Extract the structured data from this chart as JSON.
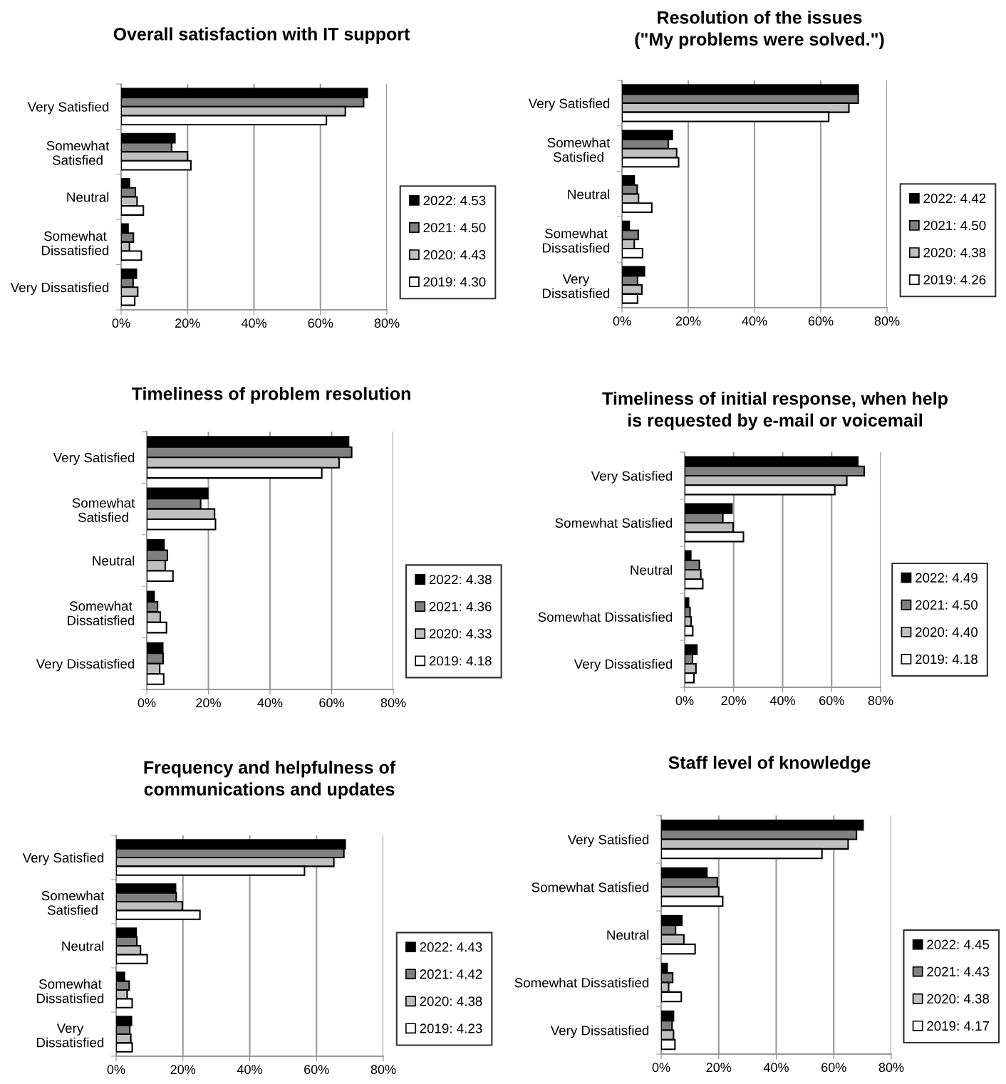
{
  "chart_data": [
    {
      "type": "bar",
      "orientation": "horizontal",
      "title": "Overall satisfaction with IT support",
      "categories": [
        "Very Satisfied",
        "Somewhat\nSatisfied",
        "Neutral",
        "Somewhat\nDissatisfied",
        "Very Dissatisfied"
      ],
      "xlim": [
        0,
        80
      ],
      "xticks": [
        {
          "value": 0,
          "label": "0%"
        },
        {
          "value": 20,
          "label": "20%"
        },
        {
          "value": 40,
          "label": "40%"
        },
        {
          "value": 60,
          "label": "60%"
        },
        {
          "value": 80,
          "label": "80%"
        }
      ],
      "grid": "x",
      "legend": "right",
      "series": [
        {
          "name": "2022: 4.53",
          "color": "#000000",
          "values": [
            74.1,
            16.2,
            2.5,
            2.1,
            4.6
          ]
        },
        {
          "name": "2021: 4.50",
          "color": "#808080",
          "values": [
            73,
            15.2,
            4.3,
            3.7,
            3.6
          ]
        },
        {
          "name": "2020: 4.43",
          "color": "#c0c0c0",
          "values": [
            67.5,
            20,
            4.8,
            2.5,
            5
          ]
        },
        {
          "name": "2019: 4.30",
          "color": "#ffffff",
          "values": [
            61.8,
            21,
            6.7,
            6.1,
            4.1
          ]
        }
      ]
    },
    {
      "type": "bar",
      "orientation": "horizontal",
      "title": "Resolution of the issues\n(\"My problems were solved.\")",
      "categories": [
        "Very Satisfied",
        "Somewhat\nSatisfied",
        "Neutral",
        "Somewhat\nDissatisfied",
        "Very\nDissatisfied"
      ],
      "xlim": [
        0,
        80
      ],
      "xticks": [
        {
          "value": 0,
          "label": "0%"
        },
        {
          "value": 20,
          "label": "20%"
        },
        {
          "value": 40,
          "label": "40%"
        },
        {
          "value": 60,
          "label": "60%"
        },
        {
          "value": 80,
          "label": "80%"
        }
      ],
      "grid": "x",
      "legend": "right",
      "series": [
        {
          "name": "2022: 4.42",
          "color": "#000000",
          "values": [
            71.3,
            15.2,
            3.7,
            2.2,
            6.8
          ]
        },
        {
          "name": "2021: 4.50",
          "color": "#808080",
          "values": [
            71.3,
            14,
            4.6,
            4.9,
            4.7
          ]
        },
        {
          "name": "2020: 4.38",
          "color": "#c0c0c0",
          "values": [
            68.5,
            16.5,
            5,
            3.7,
            6
          ]
        },
        {
          "name": "2019: 4.26",
          "color": "#ffffff",
          "values": [
            62.4,
            17.1,
            9,
            6.2,
            4.7
          ]
        }
      ]
    },
    {
      "type": "bar",
      "orientation": "horizontal",
      "title": "Timeliness of problem resolution",
      "categories": [
        "Very Satisfied",
        "Somewhat\nSatisfied",
        "Neutral",
        "Somewhat\nDissatisfied",
        "Very Dissatisfied"
      ],
      "xlim": [
        0,
        80
      ],
      "xticks": [
        {
          "value": 0,
          "label": "0%"
        },
        {
          "value": 20,
          "label": "20%"
        },
        {
          "value": 40,
          "label": "40%"
        },
        {
          "value": 60,
          "label": "60%"
        },
        {
          "value": 80,
          "label": "80%"
        }
      ],
      "grid": "x",
      "legend": "right",
      "series": [
        {
          "name": "2022: 4.38",
          "color": "#000000",
          "values": [
            65.5,
            19.8,
            5.6,
            2.4,
            5.2
          ]
        },
        {
          "name": "2021: 4.36",
          "color": "#808080",
          "values": [
            66.5,
            17.5,
            6.7,
            3.5,
            5.3
          ]
        },
        {
          "name": "2020: 4.33",
          "color": "#c0c0c0",
          "values": [
            62.4,
            22,
            6,
            4.4,
            4.2
          ]
        },
        {
          "name": "2019: 4.18",
          "color": "#ffffff",
          "values": [
            56.8,
            22.3,
            8.5,
            6.4,
            5.5
          ]
        }
      ]
    },
    {
      "type": "bar",
      "orientation": "horizontal",
      "title": "Timeliness of initial response, when help\nis requested by e-mail or voicemail",
      "categories": [
        "Very Satisfied",
        "Somewhat Satisfied",
        "Neutral",
        "Somewhat Dissatisfied",
        "Very Dissatisfied"
      ],
      "xlim": [
        0,
        80
      ],
      "xticks": [
        {
          "value": 0,
          "label": "0%"
        },
        {
          "value": 20,
          "label": "20%"
        },
        {
          "value": 40,
          "label": "40%"
        },
        {
          "value": 60,
          "label": "60%"
        },
        {
          "value": 80,
          "label": "80%"
        }
      ],
      "grid": "x",
      "legend": "right",
      "series": [
        {
          "name": "2022: 4.49",
          "color": "#000000",
          "values": [
            70.7,
            19.3,
            2.5,
            1.6,
            5
          ]
        },
        {
          "name": "2021: 4.50",
          "color": "#808080",
          "values": [
            73.3,
            15.6,
            6,
            2.2,
            3.2
          ]
        },
        {
          "name": "2020: 4.40",
          "color": "#c0c0c0",
          "values": [
            66.2,
            19.8,
            6.6,
            2.6,
            4.6
          ]
        },
        {
          "name": "2019: 4.18",
          "color": "#ffffff",
          "values": [
            61.3,
            24,
            7.4,
            3.3,
            3.8
          ]
        }
      ]
    },
    {
      "type": "bar",
      "orientation": "horizontal",
      "title": "Frequency and helpfulness of\ncommunications and updates",
      "categories": [
        "Very Satisfied",
        "Somewhat\nSatisfied",
        "Neutral",
        "Somewhat\nDissatisfied",
        "Very\nDissatisfied"
      ],
      "xlim": [
        0,
        80
      ],
      "xticks": [
        {
          "value": 0,
          "label": "0%"
        },
        {
          "value": 20,
          "label": "20%"
        },
        {
          "value": 40,
          "label": "40%"
        },
        {
          "value": 60,
          "label": "60%"
        },
        {
          "value": 80,
          "label": "80%"
        }
      ],
      "grid": "x",
      "legend": "right",
      "series": [
        {
          "name": "2022: 4.43",
          "color": "#000000",
          "values": [
            68.6,
            17.8,
            6,
            2.5,
            4.6
          ]
        },
        {
          "name": "2021: 4.42",
          "color": "#808080",
          "values": [
            68.2,
            18,
            6.2,
            3.9,
            4.1
          ]
        },
        {
          "name": "2020: 4.38",
          "color": "#c0c0c0",
          "values": [
            65.2,
            19.8,
            7.3,
            3.3,
            4.4
          ]
        },
        {
          "name": "2019: 4.23",
          "color": "#ffffff",
          "values": [
            56.4,
            25.1,
            9.3,
            4.8,
            4.8
          ]
        }
      ]
    },
    {
      "type": "bar",
      "orientation": "horizontal",
      "title": "Staff level of knowledge",
      "categories": [
        "Very Satisfied",
        "Somewhat Satisfied",
        "Neutral",
        "Somewhat Dissatisfied",
        "Very Dissatisfied"
      ],
      "xlim": [
        0,
        80
      ],
      "xticks": [
        {
          "value": 0,
          "label": "0%"
        },
        {
          "value": 20,
          "label": "20%"
        },
        {
          "value": 40,
          "label": "40%"
        },
        {
          "value": 60,
          "label": "60%"
        },
        {
          "value": 80,
          "label": "80%"
        }
      ],
      "grid": "x",
      "legend": "right",
      "series": [
        {
          "name": "2022: 4.45",
          "color": "#000000",
          "values": [
            70.2,
            15.9,
            7.2,
            2.1,
            4.3
          ]
        },
        {
          "name": "2021: 4.43",
          "color": "#808080",
          "values": [
            67.9,
            19.5,
            5,
            4,
            3.8
          ]
        },
        {
          "name": "2020: 4.38",
          "color": "#c0c0c0",
          "values": [
            65,
            20,
            7.9,
            2.6,
            4.3
          ]
        },
        {
          "name": "2019: 4.17",
          "color": "#ffffff",
          "values": [
            55.9,
            21.4,
            11.8,
            7,
            4.8
          ]
        }
      ]
    }
  ]
}
